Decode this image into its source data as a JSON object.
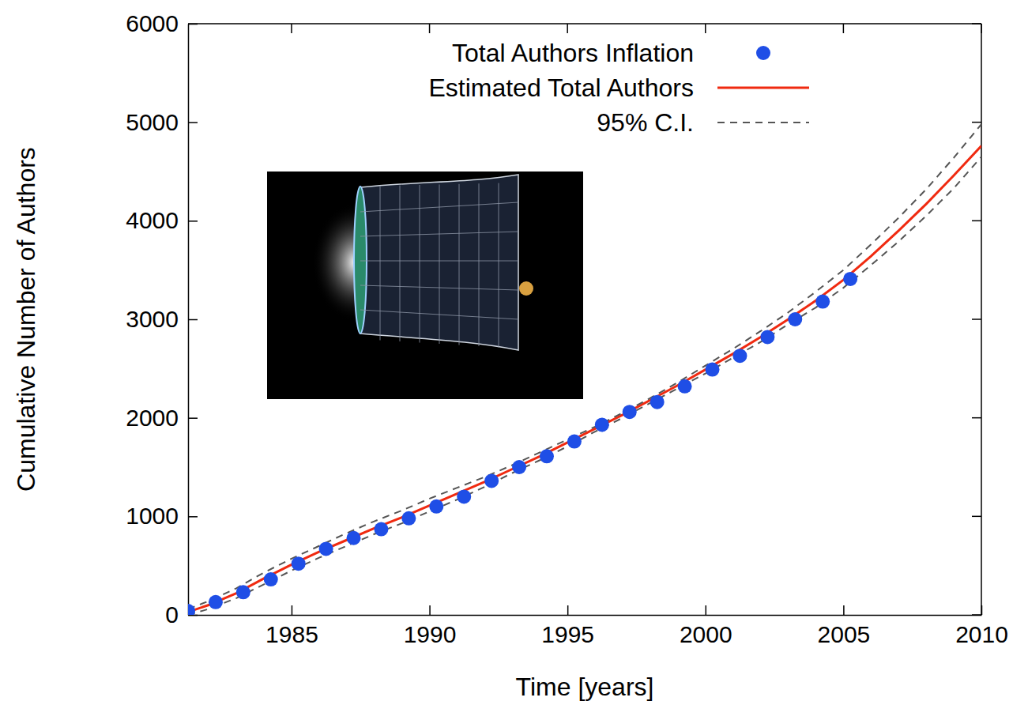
{
  "chart_data": {
    "type": "scatter",
    "x_label": "Time [years]",
    "y_label": "Cumulative Number of Authors",
    "xlim": [
      1981.25,
      2010
    ],
    "xticks": [
      1985,
      1990,
      1995,
      2000,
      2005,
      2010
    ],
    "ylim": [
      0,
      6000
    ],
    "yticks": [
      0,
      1000,
      2000,
      3000,
      4000,
      5000,
      6000
    ],
    "grid": false,
    "legend": "top-right",
    "series": [
      {
        "name": "Total Authors Inflation",
        "type": "scatter",
        "marker": "circle",
        "color": "#1f4ee6",
        "x": [
          1981.25,
          1982.25,
          1983.25,
          1984.25,
          1985.25,
          1986.25,
          1987.25,
          1988.25,
          1989.25,
          1990.25,
          1991.25,
          1992.25,
          1993.25,
          1994.25,
          1995.25,
          1996.25,
          1997.25,
          1998.25,
          1999.25,
          2000.25,
          2001.25,
          2002.25,
          2003.25,
          2004.25,
          2005.25
        ],
        "values": [
          40,
          130,
          230,
          360,
          520,
          670,
          780,
          870,
          980,
          1100,
          1200,
          1360,
          1500,
          1610,
          1760,
          1930,
          2060,
          2160,
          2320,
          2490,
          2630,
          2820,
          3000,
          3180,
          3410
        ]
      },
      {
        "name": "Estimated Total Authors",
        "type": "line",
        "line_style": "solid",
        "color": "#f02a10",
        "x": [
          1981.25,
          1982,
          1983,
          1984,
          1985,
          1986,
          1987,
          1988,
          1989,
          1990,
          1991,
          1992,
          1993,
          1994,
          1995,
          1996,
          1997,
          1998,
          1999,
          2000,
          2001,
          2002,
          2003,
          2004,
          2005,
          2006,
          2007,
          2008,
          2009,
          2010
        ],
        "values": [
          30,
          100,
          220,
          370,
          510,
          640,
          760,
          880,
          990,
          1110,
          1230,
          1350,
          1480,
          1610,
          1750,
          1890,
          2030,
          2180,
          2330,
          2490,
          2650,
          2820,
          3000,
          3190,
          3400,
          3640,
          3900,
          4170,
          4460,
          4760
        ]
      },
      {
        "name": "95% C.I.",
        "type": "band",
        "line_style": "dashed",
        "color": "#555555",
        "x": [
          1981.25,
          1982,
          1983,
          1984,
          1985,
          1986,
          1987,
          1988,
          1989,
          1990,
          1991,
          1992,
          1993,
          1994,
          1995,
          1996,
          1997,
          1998,
          1999,
          2000,
          2001,
          2002,
          2003,
          2004,
          2005,
          2006,
          2007,
          2008,
          2009,
          2010
        ],
        "upper": [
          60,
          140,
          270,
          430,
          570,
          700,
          830,
          950,
          1060,
          1180,
          1290,
          1400,
          1520,
          1650,
          1780,
          1910,
          2050,
          2200,
          2360,
          2530,
          2700,
          2880,
          3070,
          3280,
          3500,
          3760,
          4030,
          4320,
          4640,
          4980
        ],
        "lower": [
          0,
          60,
          170,
          310,
          450,
          580,
          700,
          820,
          930,
          1050,
          1170,
          1300,
          1440,
          1570,
          1710,
          1860,
          2000,
          2150,
          2300,
          2450,
          2610,
          2770,
          2950,
          3120,
          3320,
          3550,
          3790,
          4050,
          4330,
          4650
        ]
      }
    ]
  }
}
